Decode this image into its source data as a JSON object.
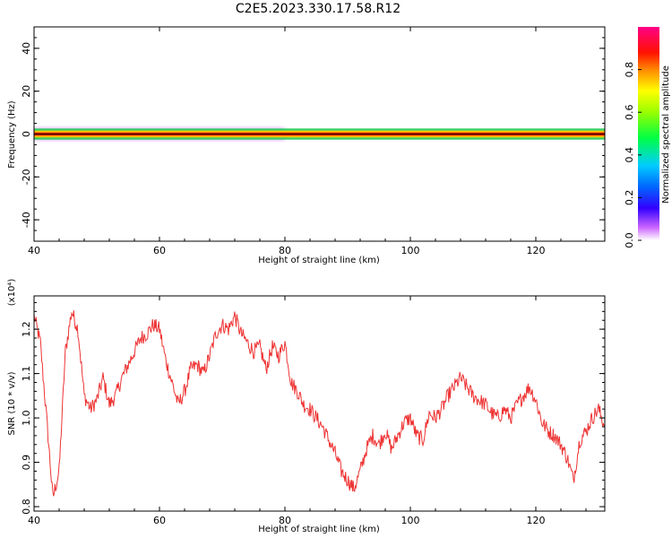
{
  "title": "C2E5.2023.330.17.58.R12",
  "chart_data": [
    {
      "type": "heatmap",
      "xlabel": "Height of straight line (km)",
      "ylabel": "Frequency (Hz)",
      "xlim": [
        40,
        131
      ],
      "ylim": [
        -50,
        50
      ],
      "xticks": [
        "40",
        "60",
        "80",
        "100",
        "120"
      ],
      "yticks": [
        "-40",
        "-20",
        "0",
        "20",
        "40"
      ],
      "colorbar": {
        "label": "Normalized spectral amplitude",
        "range": [
          0,
          1
        ],
        "ticks": [
          "0.0",
          "0.2",
          "0.4",
          "0.6",
          "0.8"
        ]
      },
      "band": {
        "center_freq_hz": 0,
        "core_halfwidth_hz": 1,
        "spread_halfwidth_hz": 3,
        "spread_extent_km": [
          40,
          80
        ],
        "core_amplitude": 0.9
      }
    },
    {
      "type": "line",
      "xlabel": "Height of straight line (km)",
      "ylabel": "SNR (10 * v/v)",
      "scale_note": "(x10⁴)",
      "xlim": [
        40,
        131
      ],
      "ylim": [
        0.79,
        1.275
      ],
      "xticks": [
        "40",
        "60",
        "80",
        "100",
        "120"
      ],
      "yticks": [
        "0.8",
        "0.9",
        "1.0",
        "1.1",
        "1.2"
      ],
      "series": [
        {
          "color": "#ee3333",
          "x": [
            40,
            41,
            42,
            43,
            44,
            45,
            46,
            47,
            48,
            49,
            50,
            51,
            52,
            53,
            54,
            55,
            56,
            57,
            58,
            59,
            60,
            61,
            62,
            63,
            64,
            65,
            66,
            67,
            68,
            69,
            70,
            71,
            72,
            73,
            74,
            75,
            76,
            77,
            78,
            79,
            80,
            81,
            82,
            83,
            84,
            85,
            86,
            87,
            88,
            89,
            90,
            91,
            92,
            93,
            94,
            95,
            96,
            97,
            98,
            99,
            100,
            101,
            102,
            103,
            104,
            105,
            106,
            107,
            108,
            109,
            110,
            111,
            112,
            113,
            114,
            115,
            116,
            117,
            118,
            119,
            120,
            121,
            122,
            123,
            124,
            125,
            126,
            127,
            128,
            129,
            130,
            131
          ],
          "y": [
            1.23,
            1.17,
            1.0,
            0.82,
            0.88,
            1.15,
            1.24,
            1.2,
            1.05,
            1.02,
            1.04,
            1.09,
            1.03,
            1.05,
            1.09,
            1.12,
            1.15,
            1.18,
            1.19,
            1.21,
            1.2,
            1.13,
            1.08,
            1.03,
            1.06,
            1.11,
            1.12,
            1.1,
            1.14,
            1.19,
            1.21,
            1.2,
            1.23,
            1.19,
            1.17,
            1.15,
            1.16,
            1.11,
            1.16,
            1.14,
            1.17,
            1.08,
            1.06,
            1.03,
            1.02,
            1.0,
            0.98,
            0.95,
            0.92,
            0.88,
            0.86,
            0.84,
            0.88,
            0.93,
            0.96,
            0.94,
            0.97,
            0.93,
            0.96,
            0.99,
            1.0,
            0.96,
            0.95,
            1.01,
            1.0,
            1.02,
            1.05,
            1.07,
            1.09,
            1.07,
            1.05,
            1.04,
            1.03,
            1.01,
            1.0,
            1.02,
            1.0,
            1.03,
            1.05,
            1.07,
            1.04,
            0.99,
            0.97,
            0.96,
            0.94,
            0.91,
            0.86,
            0.95,
            0.97,
            1.0,
            1.02,
            0.98
          ]
        }
      ]
    }
  ]
}
